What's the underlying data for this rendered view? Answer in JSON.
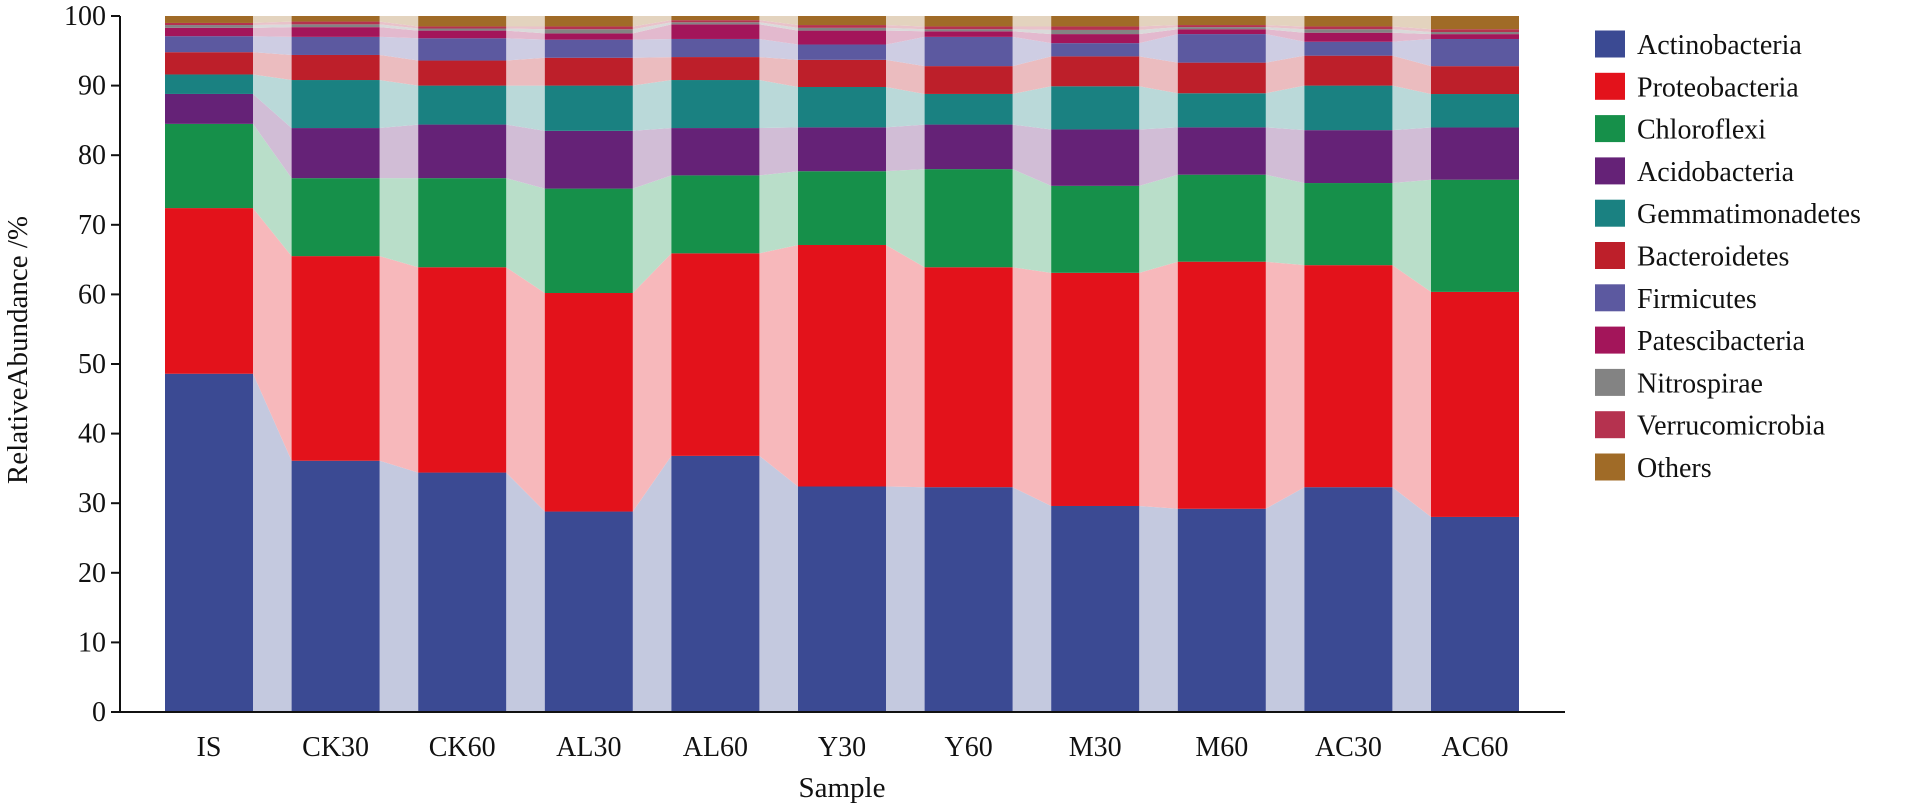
{
  "chart_data": {
    "type": "bar",
    "stacked": true,
    "normalized_percent": true,
    "connector_bands": true,
    "title": "",
    "xlabel": "Sample",
    "ylabel": "RelativeAbundance /%",
    "ylim": [
      0,
      100
    ],
    "yticks": [
      "0",
      "10",
      "20",
      "30",
      "40",
      "50",
      "60",
      "70",
      "80",
      "90",
      "100"
    ],
    "legend_position": "right",
    "grid": false,
    "categories": [
      "IS",
      "CK30",
      "CK60",
      "AL30",
      "AL60",
      "Y30",
      "Y60",
      "M30",
      "M60",
      "AC30",
      "AC60"
    ],
    "series": [
      {
        "name": "Actinobacteria",
        "color": "#3b4a93",
        "values": [
          48.6,
          36.1,
          34.4,
          28.8,
          36.8,
          32.4,
          32.3,
          29.6,
          29.2,
          32.3,
          28.0
        ]
      },
      {
        "name": "Proteobacteria",
        "color": "#e3121b",
        "values": [
          23.8,
          29.4,
          29.5,
          31.4,
          29.1,
          34.7,
          31.6,
          33.5,
          35.5,
          31.9,
          32.3
        ]
      },
      {
        "name": "Chloroflexi",
        "color": "#16904a",
        "values": [
          12.1,
          11.2,
          12.8,
          15.0,
          11.2,
          10.6,
          14.1,
          12.5,
          12.5,
          11.8,
          16.1
        ]
      },
      {
        "name": "Acidobacteria",
        "color": "#652277",
        "values": [
          4.3,
          7.2,
          7.7,
          8.3,
          6.8,
          6.3,
          6.4,
          8.1,
          6.8,
          7.6,
          7.5
        ]
      },
      {
        "name": "Gemmatimonadetes",
        "color": "#1a8181",
        "values": [
          2.8,
          6.9,
          5.6,
          6.5,
          6.9,
          5.8,
          4.4,
          6.2,
          4.9,
          6.4,
          4.8
        ]
      },
      {
        "name": "Bacteroidetes",
        "color": "#bd1f2a",
        "values": [
          3.2,
          3.6,
          3.6,
          4.0,
          3.3,
          3.9,
          4.0,
          4.3,
          4.4,
          4.3,
          4.0
        ]
      },
      {
        "name": "Firmicutes",
        "color": "#5c59a0",
        "values": [
          2.3,
          2.6,
          3.2,
          2.6,
          2.6,
          2.2,
          4.2,
          1.9,
          4.1,
          2.0,
          3.9
        ]
      },
      {
        "name": "Patescibacteria",
        "color": "#a3155a",
        "values": [
          1.2,
          1.4,
          1.1,
          0.9,
          2.1,
          2.0,
          0.8,
          1.3,
          0.7,
          1.3,
          0.7
        ]
      },
      {
        "name": "Nitrospirae",
        "color": "#838383",
        "values": [
          0.4,
          0.4,
          0.3,
          0.6,
          0.3,
          0.4,
          0.3,
          0.6,
          0.3,
          0.5,
          0.3
        ]
      },
      {
        "name": "Verrucomicrobia",
        "color": "#b5324f",
        "values": [
          0.3,
          0.4,
          0.3,
          0.4,
          0.3,
          0.4,
          0.4,
          0.5,
          0.3,
          0.4,
          0.4
        ]
      },
      {
        "name": "Others",
        "color": "#a06b27",
        "values": [
          1.0,
          0.8,
          1.5,
          1.5,
          0.6,
          1.3,
          1.5,
          1.5,
          1.3,
          1.5,
          1.9
        ]
      }
    ]
  }
}
